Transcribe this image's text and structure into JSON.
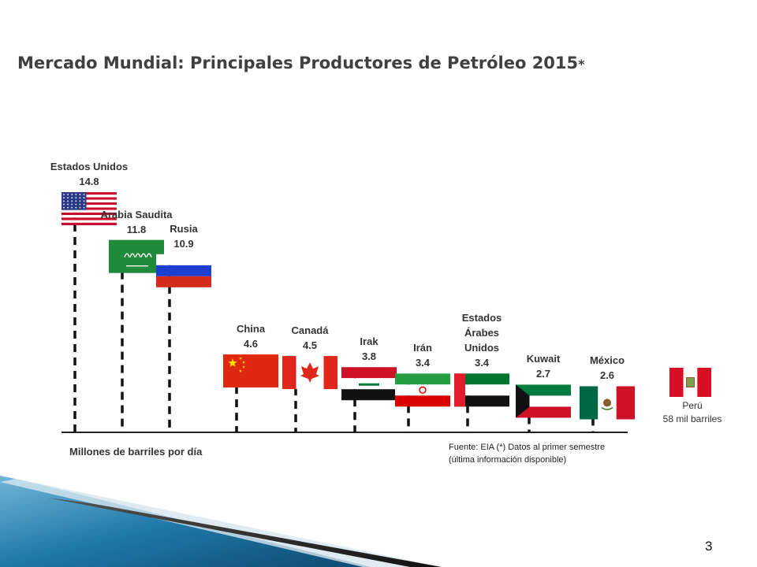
{
  "title": "Mercado Mundial: Principales Productores de Petróleo 2015",
  "title_mark": "*",
  "chart_data": {
    "type": "bar",
    "title": "Mercado Mundial: Principales Productores de Petróleo 2015*",
    "ylabel": "Millones de barriles por día",
    "categories": [
      "Estados Unidos",
      "Arabia Saudita",
      "Rusia",
      "China",
      "Canadá",
      "Irak",
      "Irán",
      "Estados Árabes Unidos",
      "Kuwait",
      "México"
    ],
    "values": [
      14.8,
      11.8,
      10.9,
      4.6,
      4.5,
      3.8,
      3.4,
      3.4,
      2.7,
      2.6
    ],
    "labels": [
      [
        "Estados Unidos",
        "14.8"
      ],
      [
        "Arabia Saudita",
        "11.8"
      ],
      [
        "Rusia",
        "10.9"
      ],
      [
        "China",
        "4.6"
      ],
      [
        "Canadá",
        "4.5"
      ],
      [
        "Irak",
        "3.8"
      ],
      [
        "Irán",
        "3.4"
      ],
      [
        "Estados",
        "Árabes",
        "Unidos",
        "3.4"
      ],
      [
        "Kuwait",
        "2.7"
      ],
      [
        "México",
        "2.6"
      ]
    ],
    "flags": [
      "usa-flag",
      "saudi-arabia-flag",
      "russia-flag",
      "china-flag",
      "canada-flag",
      "iraq-flag",
      "iran-flag",
      "uae-flag",
      "kuwait-flag",
      "mexico-flag"
    ],
    "note": {
      "label": "Perú",
      "value": "58 mil barriles",
      "flag": "peru-flag"
    }
  },
  "source_line1": "Fuente: EIA (*) Datos al primer semestre",
  "source_line2": "(última información disponible)",
  "page_number": "3",
  "colors": {
    "title": "#404040",
    "axis": "#222222",
    "accent_blue": "#1f6f9f"
  }
}
